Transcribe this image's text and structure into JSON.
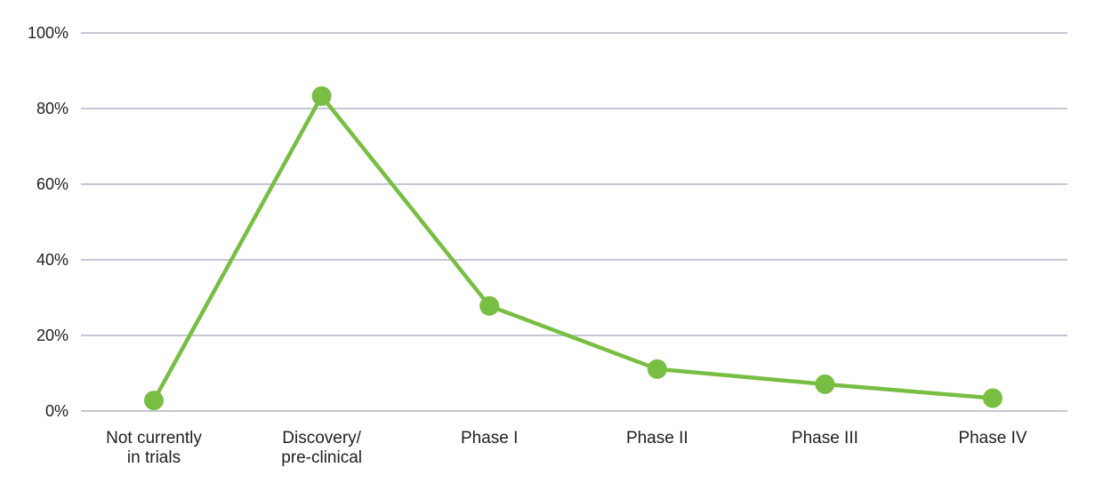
{
  "chart_data": {
    "type": "line",
    "categories": [
      [
        "Not currently",
        "in trials"
      ],
      [
        "Discovery/",
        "pre-clinical"
      ],
      [
        "Phase I"
      ],
      [
        "Phase II"
      ],
      [
        "Phase III"
      ],
      [
        "Phase IV"
      ]
    ],
    "values": [
      2.8,
      83.3,
      27.8,
      11.1,
      7.1,
      3.4
    ],
    "title": "",
    "xlabel": "",
    "ylabel": "",
    "ylim": [
      0,
      100
    ],
    "y_ticks": [
      0,
      20,
      40,
      60,
      80,
      100
    ],
    "y_tick_labels": [
      "0%",
      "20%",
      "40%",
      "60%",
      "80%",
      "100%"
    ],
    "grid": true,
    "legend": false,
    "colors": {
      "series": "#77BE43",
      "gridline": "#C4C8D4",
      "label": "#212121",
      "background": "#FFFFFF"
    }
  }
}
